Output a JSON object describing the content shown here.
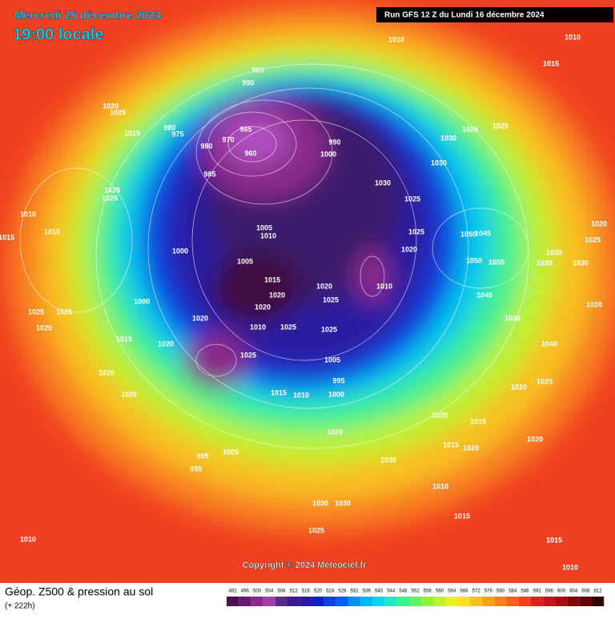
{
  "header": {
    "date": "Mercredi 25 décembre 2024",
    "time": "19:00 locale",
    "run": "Run GFS 12 Z du Lundi 16 décembre 2024"
  },
  "footer": {
    "title": "Géop. Z500 & pression au sol",
    "lead": "(+ 222h)",
    "copyright": "Copyright © 2024 Meteociel.fr"
  },
  "legend": {
    "levels": [
      492,
      496,
      500,
      504,
      508,
      512,
      516,
      520,
      524,
      528,
      532,
      536,
      540,
      544,
      548,
      552,
      556,
      560,
      564,
      568,
      572,
      576,
      580,
      584,
      588,
      592,
      596,
      600,
      604,
      608,
      612
    ],
    "colors": [
      "#4a1050",
      "#6a1a6a",
      "#8a2a8a",
      "#a040a8",
      "#5a2a8c",
      "#3a1a8c",
      "#2a1aa0",
      "#1020c0",
      "#1040e0",
      "#0060f0",
      "#0090f0",
      "#00b8f0",
      "#00d8e8",
      "#20e8c0",
      "#40f090",
      "#60f060",
      "#90f040",
      "#c0f030",
      "#e8f020",
      "#f8e020",
      "#f8c020",
      "#f8a020",
      "#f88020",
      "#f86020",
      "#f04020",
      "#e02020",
      "#c01818",
      "#a01010",
      "#800808",
      "#600404",
      "#300000"
    ]
  },
  "isobar_labels": [
    "1010",
    "1010",
    "1015",
    "995",
    "990",
    "1020",
    "1025",
    "1015",
    "980",
    "975",
    "965",
    "970",
    "960",
    "980",
    "990",
    "1000",
    "985",
    "1030",
    "1025",
    "1030",
    "1030",
    "1025",
    "1025",
    "1025",
    "1025",
    "1010",
    "1010",
    "1015",
    "1020",
    "1025",
    "1030",
    "1030",
    "1035",
    "1005",
    "1010",
    "1000",
    "1005",
    "1015",
    "1020",
    "1020",
    "1020",
    "1025",
    "1010",
    "1020",
    "1025",
    "1050",
    "1045",
    "1050",
    "1055",
    "1040",
    "1030",
    "1040",
    "1020",
    "1025",
    "1020",
    "1000",
    "1025",
    "1025",
    "1025",
    "1015",
    "1020",
    "1020",
    "1010",
    "1025",
    "1025",
    "1025",
    "1005",
    "995",
    "1000",
    "1015",
    "1010",
    "1020",
    "1025",
    "1020",
    "1015",
    "1015",
    "1020",
    "1020",
    "1020",
    "1030",
    "995",
    "995",
    "1005",
    "1010",
    "1015",
    "1015",
    "1010",
    "1030",
    "1030",
    "1025",
    "1010"
  ]
}
